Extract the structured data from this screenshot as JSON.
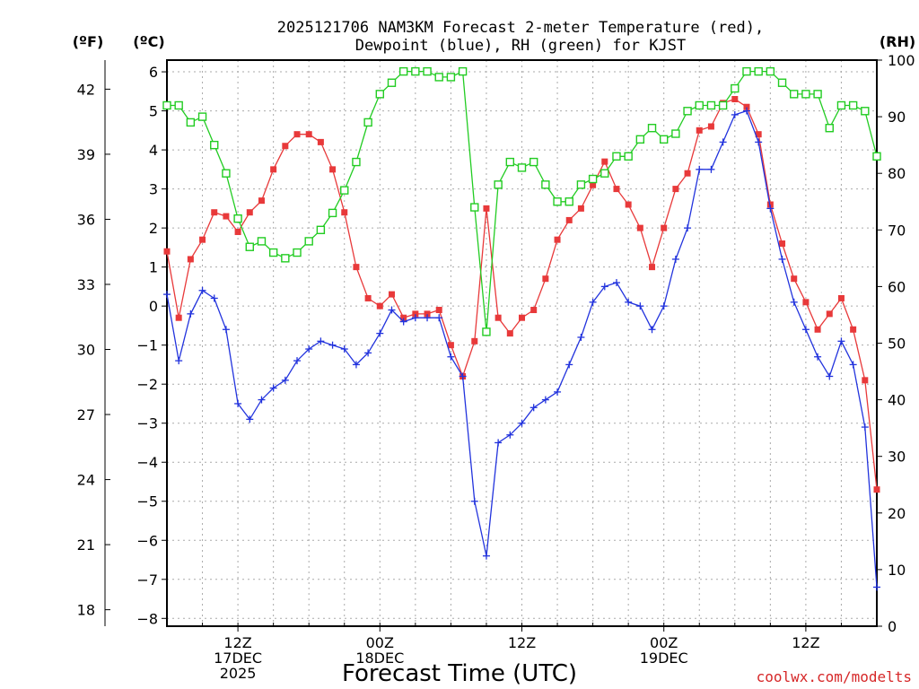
{
  "chart_data": {
    "type": "line",
    "title_lines": [
      "2025121706 NAM3KM Forecast 2-meter Temperature (red),",
      "Dewpoint (blue), RH (green) for KJST"
    ],
    "xlabel": "Forecast Time (UTC)",
    "credit": "coolwx.com/modelts",
    "units": {
      "fahrenheit": "(ºF)",
      "celsius": "(ºC)",
      "rh": "(RH)"
    },
    "x_unit": "forecast hour from 2025121706 UTC",
    "x_range": [
      0,
      60
    ],
    "y_left_range_c": [
      -8.2,
      6.3
    ],
    "y_right_range_rh": [
      0,
      100
    ],
    "y_c_ticks": [
      -8,
      -7,
      -6,
      -5,
      -4,
      -3,
      -2,
      -1,
      0,
      1,
      2,
      3,
      4,
      5,
      6
    ],
    "y_f_ticks": [
      18,
      21,
      24,
      27,
      30,
      33,
      36,
      39,
      42
    ],
    "y_rh_ticks": [
      0,
      10,
      20,
      30,
      40,
      50,
      60,
      70,
      80,
      90,
      100
    ],
    "x_ticks": [
      {
        "hour": 6,
        "lines": [
          "12Z",
          "17DEC",
          "2025"
        ]
      },
      {
        "hour": 18,
        "lines": [
          "00Z",
          "18DEC"
        ]
      },
      {
        "hour": 30,
        "lines": [
          "12Z",
          ""
        ]
      },
      {
        "hour": 42,
        "lines": [
          "00Z",
          "19DEC"
        ]
      },
      {
        "hour": 54,
        "lines": [
          "12Z",
          ""
        ]
      }
    ],
    "grid": true,
    "series": [
      {
        "key": "temperature",
        "color": "#e8393a",
        "marker": "filled-square",
        "axis": "celsius",
        "values": [
          1.4,
          -0.3,
          1.2,
          1.7,
          2.4,
          2.3,
          1.9,
          2.4,
          2.7,
          3.5,
          4.1,
          4.4,
          4.4,
          4.2,
          3.5,
          2.4,
          1.0,
          0.2,
          0.0,
          0.3,
          -0.3,
          -0.2,
          -0.2,
          -0.1,
          -1.0,
          -1.8,
          -0.9,
          2.5,
          -0.3,
          -0.7,
          -0.3,
          -0.1,
          0.7,
          1.7,
          2.2,
          2.5,
          3.1,
          3.7,
          3.0,
          2.6,
          2.0,
          1.0,
          2.0,
          3.0,
          3.4,
          4.5,
          4.6,
          5.2,
          5.3,
          5.1,
          4.4,
          2.6,
          1.6,
          0.7,
          0.1,
          -0.6,
          -0.2,
          0.2,
          -0.6,
          -1.9,
          -4.7
        ]
      },
      {
        "key": "dewpoint",
        "color": "#2233dd",
        "marker": "plus",
        "axis": "celsius",
        "values": [
          0.3,
          -1.4,
          -0.2,
          0.4,
          0.2,
          -0.6,
          -2.5,
          -2.9,
          -2.4,
          -2.1,
          -1.9,
          -1.4,
          -1.1,
          -0.9,
          -1.0,
          -1.1,
          -1.5,
          -1.2,
          -0.7,
          -0.1,
          -0.4,
          -0.3,
          -0.3,
          -0.3,
          -1.3,
          -1.8,
          -5.0,
          -6.4,
          -3.5,
          -3.3,
          -3.0,
          -2.6,
          -2.4,
          -2.2,
          -1.5,
          -0.8,
          0.1,
          0.5,
          0.6,
          0.1,
          0.0,
          -0.6,
          0.0,
          1.2,
          2.0,
          3.5,
          3.5,
          4.2,
          4.9,
          5.0,
          4.2,
          2.5,
          1.2,
          0.1,
          -0.6,
          -1.3,
          -1.8,
          -0.9,
          -1.5,
          -3.1,
          -7.2
        ]
      },
      {
        "key": "rh",
        "color": "#22cc22",
        "marker": "open-square",
        "axis": "rh",
        "values": [
          92,
          92,
          89,
          90,
          85,
          80,
          72,
          67,
          68,
          66,
          65,
          66,
          68,
          70,
          73,
          77,
          82,
          89,
          94,
          96,
          98,
          98,
          98,
          97,
          97,
          98,
          74,
          52,
          78,
          82,
          81,
          82,
          78,
          75,
          75,
          78,
          79,
          80,
          83,
          83,
          86,
          88,
          86,
          87,
          91,
          92,
          92,
          92,
          95,
          98,
          98,
          98,
          96,
          94,
          94,
          94,
          88,
          92,
          92,
          91,
          83
        ]
      }
    ]
  }
}
